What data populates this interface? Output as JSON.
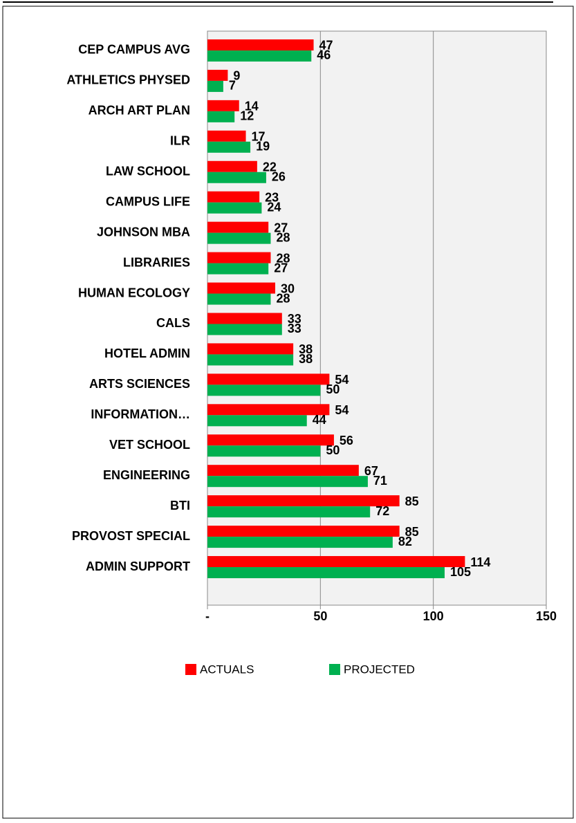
{
  "chart_data": {
    "type": "hbar",
    "categories": [
      "CEP CAMPUS AVG",
      "ATHLETICS PHYSED",
      "ARCH ART PLAN",
      "ILR",
      "LAW SCHOOL",
      "CAMPUS LIFE",
      "JOHNSON MBA",
      "LIBRARIES",
      "HUMAN ECOLOGY",
      "CALS",
      "HOTEL ADMIN",
      "ARTS SCIENCES",
      "INFORMATION…",
      "VET SCHOOL",
      "ENGINEERING",
      "BTI",
      "PROVOST SPECIAL",
      "ADMIN SUPPORT"
    ],
    "series": [
      {
        "name": "ACTUALS",
        "color": "#ff0000",
        "values": [
          47,
          9,
          14,
          17,
          22,
          23,
          27,
          28,
          30,
          33,
          38,
          54,
          54,
          56,
          67,
          85,
          85,
          114
        ]
      },
      {
        "name": "PROJECTED",
        "color": "#00b050",
        "values": [
          46,
          7,
          12,
          19,
          26,
          24,
          28,
          27,
          28,
          33,
          38,
          50,
          44,
          50,
          71,
          72,
          82,
          105
        ]
      }
    ],
    "xlim": [
      0,
      150
    ],
    "xticks": [
      {
        "value": 0,
        "label": "-"
      },
      50,
      100,
      150
    ],
    "grid": true,
    "legend": "bottom"
  }
}
